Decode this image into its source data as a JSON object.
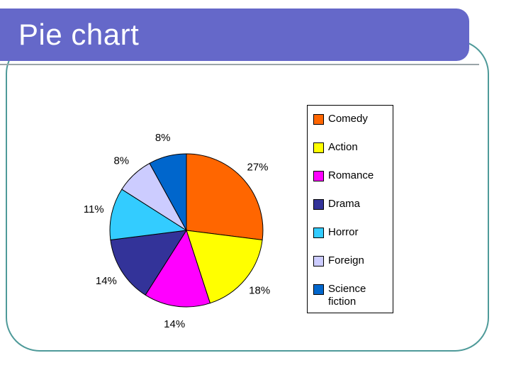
{
  "slide": {
    "title": "Pie chart",
    "colors": {
      "banner": "#6568C9",
      "border": "#4E9A99",
      "underline": "#9AA4A8"
    }
  },
  "chart_data": {
    "type": "pie",
    "title": "Pie chart",
    "start_angle_deg": 0,
    "direction": "clockwise",
    "legend_position": "right",
    "slices": [
      {
        "label": "Comedy",
        "value_pct": 27,
        "data_label": "27%",
        "color": "#FF6600"
      },
      {
        "label": "Action",
        "value_pct": 18,
        "data_label": "18%",
        "color": "#FFFF00"
      },
      {
        "label": "Romance",
        "value_pct": 14,
        "data_label": "14%",
        "color": "#FF00FF"
      },
      {
        "label": "Drama",
        "value_pct": 14,
        "data_label": "14%",
        "color": "#333399"
      },
      {
        "label": "Horror",
        "value_pct": 11,
        "data_label": "11%",
        "color": "#33CCFF"
      },
      {
        "label": "Foreign",
        "value_pct": 8,
        "data_label": "8%",
        "color": "#CCCCFF"
      },
      {
        "label": "Science fiction",
        "value_pct": 8,
        "data_label": "8%",
        "color": "#0066CC"
      }
    ]
  }
}
